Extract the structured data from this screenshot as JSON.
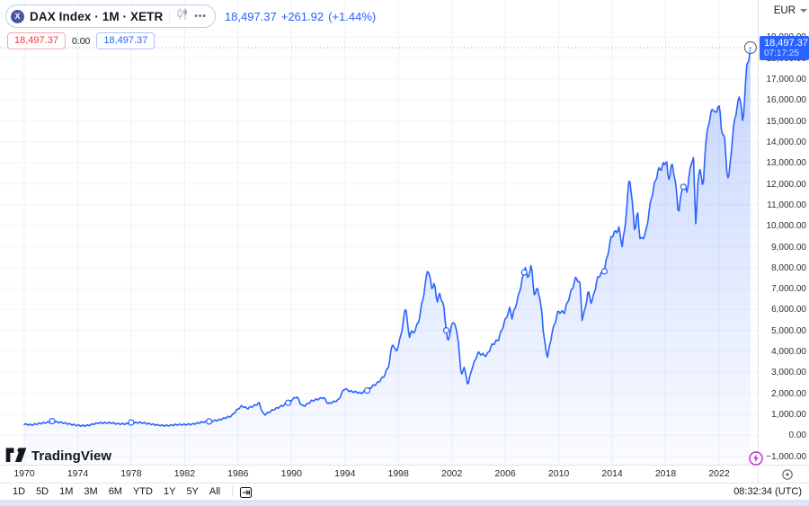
{
  "header": {
    "symbol_logo_letter": "X",
    "symbol_title": "DAX Index · 1M · XETR",
    "more_dots": "•••",
    "last_price": "18,497.37",
    "change": "+261.92",
    "change_pct": "(+1.44%)",
    "sell_price": "18,497.37",
    "spread": "0.00",
    "buy_price": "18,497.37"
  },
  "price_scale": {
    "currency_label": "EUR",
    "labels": [
      "19,000.00",
      "18,000.00",
      "17,000.00",
      "16,000.00",
      "15,000.00",
      "14,000.00",
      "13,000.00",
      "12,000.00",
      "11,000.00",
      "10,000.00",
      "9,000.00",
      "8,000.00",
      "7,000.00",
      "6,000.00",
      "5,000.00",
      "4,000.00",
      "3,000.00",
      "2,000.00",
      "1,000.00",
      "0.00",
      "−1,000.00"
    ],
    "price_badge": {
      "price": "18,497.37",
      "countdown": "07:17:25"
    }
  },
  "time_scale": {
    "years": [
      "1970",
      "1974",
      "1978",
      "1982",
      "1986",
      "1990",
      "1994",
      "1998",
      "2002",
      "2006",
      "2010",
      "2014",
      "2018",
      "2022"
    ]
  },
  "toolbar": {
    "ranges": [
      "1D",
      "5D",
      "1M",
      "3M",
      "6M",
      "YTD",
      "1Y",
      "5Y",
      "All"
    ],
    "clock": "08:32:34 (UTC)"
  },
  "brand": {
    "name": "TradingView"
  },
  "colors": {
    "accent": "#2962FF",
    "sell_red": "#F23645",
    "text_dark": "#131722",
    "text_gray": "#787B86",
    "border": "#E0E3EB",
    "grid_vertical": "#ECEFF5",
    "grid_horizontal": "#F2F4F9",
    "lightning_purple": "#C026D3"
  },
  "chart_data": {
    "type": "area",
    "title": "DAX Index, 1M, XETR",
    "ylabel": "EUR",
    "y_axis": {
      "min": -1000,
      "max": 19000,
      "tick_step": 1000
    },
    "x_ticks_years": [
      1970,
      1974,
      1978,
      1982,
      1986,
      1990,
      1994,
      1998,
      2002,
      2006,
      2010,
      2014,
      2018,
      2022
    ],
    "line_color": "#2962FF",
    "last_point": {
      "year": 2024.35,
      "value": 18497.37,
      "label": "18,497.37"
    },
    "marker_years": [
      1972.08,
      1978.0,
      1983.86,
      1989.78,
      1995.7,
      2001.6,
      2007.4,
      2013.4,
      2019.3
    ],
    "series_anchors": [
      [
        1970,
        540
      ],
      [
        1970.5,
        520
      ],
      [
        1971,
        560
      ],
      [
        1971.5,
        590
      ],
      [
        1972.1,
        620
      ],
      [
        1972.8,
        600
      ],
      [
        1973.3,
        560
      ],
      [
        1973.9,
        500
      ],
      [
        1974.5,
        460
      ],
      [
        1974.9,
        480
      ],
      [
        1975.5,
        560
      ],
      [
        1976,
        580
      ],
      [
        1976.5,
        600
      ],
      [
        1977,
        570
      ],
      [
        1977.5,
        560
      ],
      [
        1978,
        575
      ],
      [
        1978.6,
        590
      ],
      [
        1979.3,
        540
      ],
      [
        1980,
        500
      ],
      [
        1980.7,
        480
      ],
      [
        1981.4,
        500
      ],
      [
        1982,
        490
      ],
      [
        1982.6,
        520
      ],
      [
        1983.3,
        640
      ],
      [
        1983.9,
        700
      ],
      [
        1984.5,
        720
      ],
      [
        1985,
        800
      ],
      [
        1985.5,
        900
      ],
      [
        1986,
        1250
      ],
      [
        1986.3,
        1400
      ],
      [
        1986.7,
        1300
      ],
      [
        1987,
        1380
      ],
      [
        1987.6,
        1550
      ],
      [
        1987.8,
        1100
      ],
      [
        1988,
        980
      ],
      [
        1988.5,
        1150
      ],
      [
        1989,
        1300
      ],
      [
        1989.6,
        1500
      ],
      [
        1990,
        1700
      ],
      [
        1990.4,
        1880
      ],
      [
        1990.7,
        1500
      ],
      [
        1990.9,
        1400
      ],
      [
        1991.2,
        1500
      ],
      [
        1991.5,
        1620
      ],
      [
        1992,
        1700
      ],
      [
        1992.4,
        1780
      ],
      [
        1992.75,
        1500
      ],
      [
        1993,
        1570
      ],
      [
        1993.5,
        1700
      ],
      [
        1993.95,
        2260
      ],
      [
        1994.4,
        2100
      ],
      [
        1994.8,
        2050
      ],
      [
        1995.2,
        1980
      ],
      [
        1995.6,
        2100
      ],
      [
        1995.95,
        2280
      ],
      [
        1996.5,
        2550
      ],
      [
        1996.95,
        2880
      ],
      [
        1997.3,
        3400
      ],
      [
        1997.55,
        4440
      ],
      [
        1997.8,
        3980
      ],
      [
        1998,
        4250
      ],
      [
        1998.3,
        5100
      ],
      [
        1998.55,
        6170
      ],
      [
        1998.8,
        4550
      ],
      [
        1998.95,
        5000
      ],
      [
        1999.1,
        4800
      ],
      [
        1999.5,
        5400
      ],
      [
        1999.95,
        6960
      ],
      [
        2000.2,
        8060
      ],
      [
        2000.5,
        7100
      ],
      [
        2000.7,
        7250
      ],
      [
        2000.9,
        6400
      ],
      [
        2001.1,
        6750
      ],
      [
        2001.4,
        6100
      ],
      [
        2001.7,
        4310
      ],
      [
        2001.95,
        5160
      ],
      [
        2002.2,
        5400
      ],
      [
        2002.5,
        4400
      ],
      [
        2002.7,
        2770
      ],
      [
        2002.9,
        3320
      ],
      [
        2003.2,
        2420
      ],
      [
        2003.5,
        3220
      ],
      [
        2003.95,
        3965
      ],
      [
        2004.3,
        3860
      ],
      [
        2004.6,
        3780
      ],
      [
        2005,
        4260
      ],
      [
        2005.5,
        4550
      ],
      [
        2005.95,
        5410
      ],
      [
        2006.35,
        6100
      ],
      [
        2006.5,
        5640
      ],
      [
        2006.95,
        6600
      ],
      [
        2007.5,
        8090
      ],
      [
        2007.65,
        7450
      ],
      [
        2007.95,
        8070
      ],
      [
        2008.2,
        6500
      ],
      [
        2008.4,
        7080
      ],
      [
        2008.75,
        5800
      ],
      [
        2008.85,
        4800
      ],
      [
        2009.15,
        3670
      ],
      [
        2009.5,
        4900
      ],
      [
        2009.95,
        5960
      ],
      [
        2010.4,
        5900
      ],
      [
        2010.95,
        6910
      ],
      [
        2011.3,
        7510
      ],
      [
        2011.6,
        7150
      ],
      [
        2011.75,
        5500
      ],
      [
        2011.95,
        5900
      ],
      [
        2012.2,
        6850
      ],
      [
        2012.45,
        6260
      ],
      [
        2012.95,
        7610
      ],
      [
        2013.4,
        7900
      ],
      [
        2013.95,
        9550
      ],
      [
        2014.5,
        9830
      ],
      [
        2014.75,
        9000
      ],
      [
        2014.95,
        9800
      ],
      [
        2015.3,
        12350
      ],
      [
        2015.7,
        9660
      ],
      [
        2015.9,
        10700
      ],
      [
        2016.1,
        9300
      ],
      [
        2016.5,
        9680
      ],
      [
        2016.95,
        11480
      ],
      [
        2017.4,
        12600
      ],
      [
        2017.95,
        12920
      ],
      [
        2018.05,
        13200
      ],
      [
        2018.2,
        12000
      ],
      [
        2018.45,
        12850
      ],
      [
        2018.7,
        12250
      ],
      [
        2018.95,
        10560
      ],
      [
        2019.3,
        12000
      ],
      [
        2019.6,
        11700
      ],
      [
        2019.95,
        13250
      ],
      [
        2020.08,
        13300
      ],
      [
        2020.16,
        11890
      ],
      [
        2020.22,
        9935
      ],
      [
        2020.45,
        12300
      ],
      [
        2020.6,
        12900
      ],
      [
        2020.8,
        11560
      ],
      [
        2020.95,
        13720
      ],
      [
        2021.3,
        15130
      ],
      [
        2021.6,
        15540
      ],
      [
        2021.8,
        15100
      ],
      [
        2021.95,
        15880
      ],
      [
        2022.05,
        15470
      ],
      [
        2022.17,
        14460
      ],
      [
        2022.3,
        14450
      ],
      [
        2022.45,
        13900
      ],
      [
        2022.55,
        12780
      ],
      [
        2022.72,
        12110
      ],
      [
        2022.85,
        13250
      ],
      [
        2022.95,
        13920
      ],
      [
        2023.2,
        15370
      ],
      [
        2023.4,
        15840
      ],
      [
        2023.55,
        16450
      ],
      [
        2023.65,
        15840
      ],
      [
        2023.78,
        14700
      ],
      [
        2023.95,
        16750
      ],
      [
        2024.1,
        17680
      ],
      [
        2024.2,
        17930
      ],
      [
        2024.35,
        18497.37
      ]
    ]
  }
}
